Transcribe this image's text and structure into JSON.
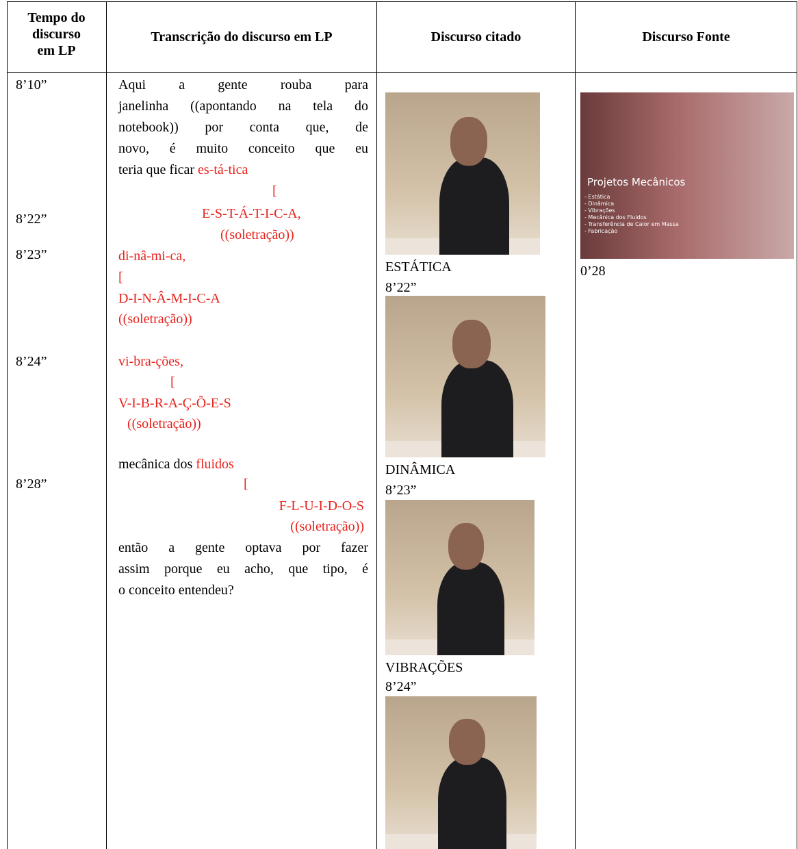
{
  "header": [
    "Tempo do discurso em LP",
    "Transcrição do discurso em LP",
    "Discurso citado",
    "Discurso Fonte"
  ],
  "times": [
    "8’10”",
    "8’22”",
    "8’23”",
    "8’24”",
    "8’28”"
  ],
  "transcript": {
    "intro": [
      "Aqui a gente rouba para",
      "janelinha ((apontando na tela do",
      "notebook)) por conta que, de",
      "novo, é muito conceito que eu"
    ],
    "intro_last": [
      "teria que ficar",
      "es-tá-tica"
    ],
    "estatica": [
      "[",
      "E-S-T-Á-T-I-C-A,",
      "((soletração))"
    ],
    "dinamica": [
      "di-nâ-mi-ca,",
      "[",
      "D-I-N-Â-M-I-C-A",
      "((soletração))"
    ],
    "vibracoes": [
      "vi-bra-ções,",
      "[",
      "V-I-B-R-A-Ç-Õ-E-S",
      "((soletração))"
    ],
    "fluidos_lead": [
      "mecânica dos",
      "fluidos"
    ],
    "fluidos": [
      "[",
      "F-L-U-I-D-O-S",
      "((soletração))"
    ],
    "outro": [
      "então a gente optava por fazer",
      "assim porque eu acho, que tipo, é",
      "o conceito entendeu?"
    ]
  },
  "cited": [
    {
      "label": "ESTÁTICA",
      "time": "8’22”"
    },
    {
      "label": "DINÂMICA",
      "time": "8’23”"
    },
    {
      "label": "VIBRAÇÕES",
      "time": "8’24”"
    }
  ],
  "source": {
    "image_title": "Projetos Mecânicos",
    "image_items": [
      "- Estática",
      "- Dinâmica",
      "- Vibrações",
      "- Mecânica dos Fluidos",
      "- Transferência de Calor em Massa",
      "- Fabricação"
    ],
    "time": "0’28"
  }
}
